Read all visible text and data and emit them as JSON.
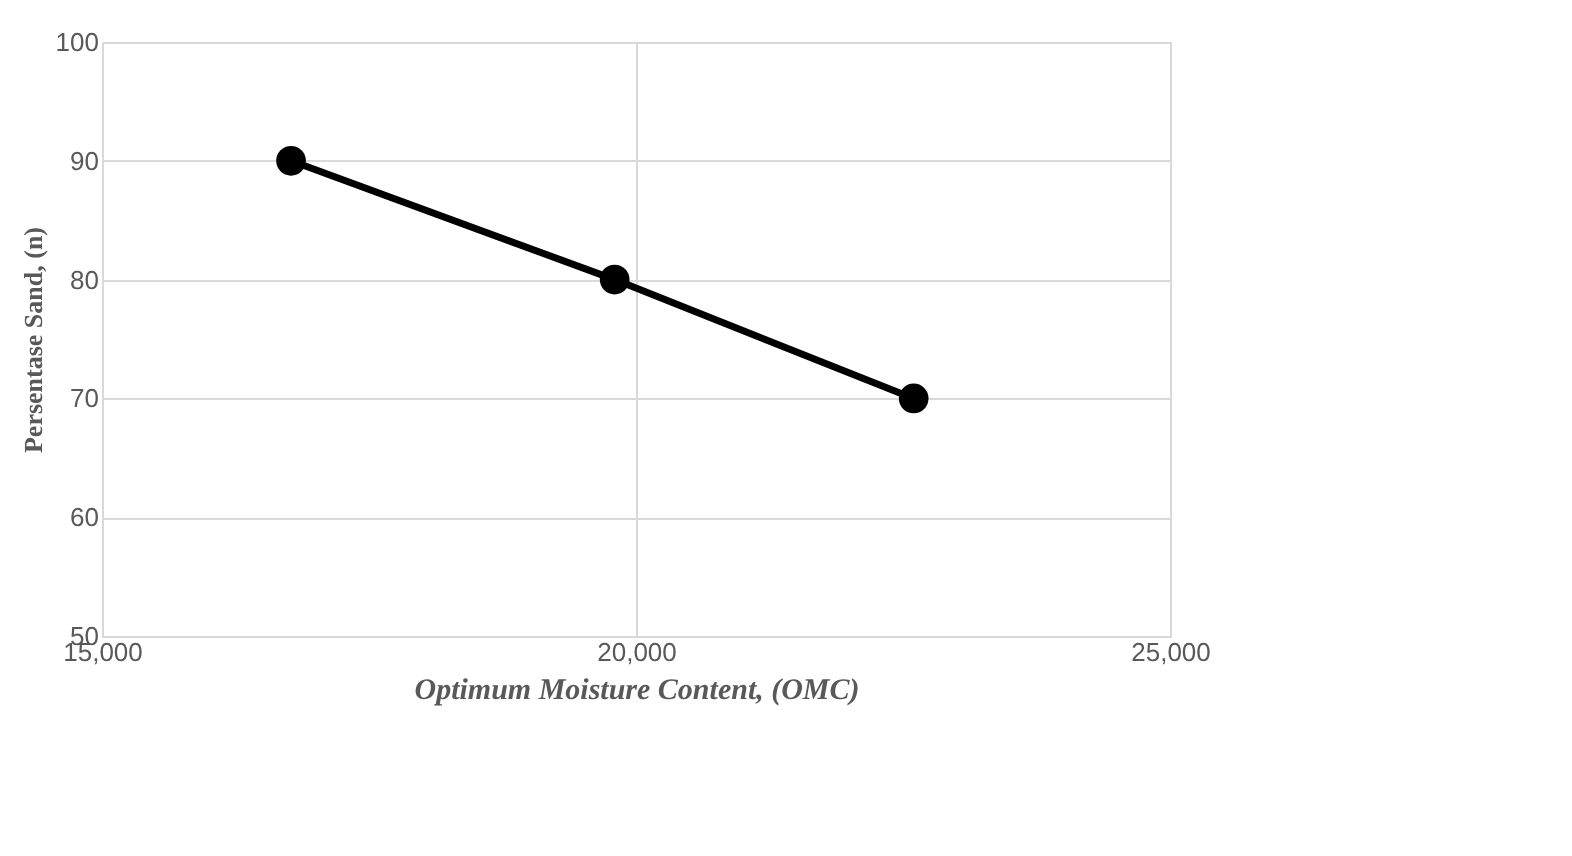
{
  "chart_data": {
    "type": "line",
    "x": [
      16770,
      19800,
      22600
    ],
    "series": [
      {
        "color": "#000000",
        "values": [
          90,
          80,
          70
        ]
      }
    ],
    "xlabel": "Optimum Moisture Content, (OMC)",
    "ylabel": "Persentase Sand, (n)",
    "xlim": [
      15000,
      25000
    ],
    "xticks": [
      {
        "value": 15000,
        "label": "15,000"
      },
      {
        "value": 20000,
        "label": "20,000"
      },
      {
        "value": 25000,
        "label": "25,000"
      }
    ],
    "ylim": [
      50,
      100
    ],
    "yticks": [
      50,
      60,
      70,
      80,
      90,
      100
    ],
    "grid": true,
    "marker": "circle",
    "line_style": "solid"
  }
}
